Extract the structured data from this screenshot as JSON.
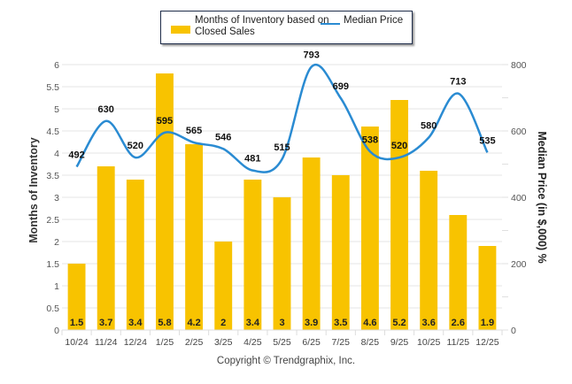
{
  "chart_data": {
    "type": "bar+line",
    "categories": [
      "10/24",
      "11/24",
      "12/24",
      "1/25",
      "2/25",
      "3/25",
      "4/25",
      "5/25",
      "6/25",
      "7/25",
      "8/25",
      "9/25",
      "10/25",
      "11/25",
      "12/25"
    ],
    "series": [
      {
        "name": "Months of Inventory based on Closed Sales",
        "type": "bar",
        "axis": "left",
        "color": "#f8c300",
        "values": [
          1.5,
          3.7,
          3.4,
          5.8,
          4.2,
          2,
          3.4,
          3,
          3.9,
          3.5,
          4.6,
          5.2,
          3.6,
          2.6,
          1.9
        ],
        "labels": [
          "1.5",
          "3.7",
          "3.4",
          "5.8",
          "4.2",
          "2",
          "3.4",
          "3",
          "3.9",
          "3.5",
          "4.6",
          "5.2",
          "3.6",
          "2.6",
          "1.9"
        ]
      },
      {
        "name": "Median Price",
        "type": "line",
        "axis": "right",
        "color": "#2a8bd2",
        "values": [
          492,
          630,
          520,
          595,
          565,
          546,
          481,
          515,
          793,
          699,
          538,
          520,
          580,
          713,
          535
        ],
        "labels": [
          "492",
          "630",
          "520",
          "595",
          "565",
          "546",
          "481",
          "515",
          "793",
          "699",
          "538",
          "520",
          "580",
          "713",
          "535"
        ]
      }
    ],
    "left_axis": {
      "title": "Months of Inventory",
      "range": [
        0,
        6
      ],
      "ticks": [
        "0",
        "0.5",
        "1",
        "1.5",
        "2",
        "2.5",
        "3",
        "3.5",
        "4",
        "4.5",
        "5",
        "5.5",
        "6"
      ]
    },
    "right_axis": {
      "title": "Median Price (in $,000) %",
      "range": [
        0,
        800
      ],
      "ticks": [
        "0",
        "200",
        "400",
        "600",
        "800"
      ]
    },
    "grid": true,
    "legend_position": "top-center",
    "legend": {
      "bar_label": "Months of Inventory based on Closed Sales",
      "line_label": "Median Price"
    }
  },
  "footer": {
    "copyright": "Copyright © Trendgraphix, Inc."
  }
}
